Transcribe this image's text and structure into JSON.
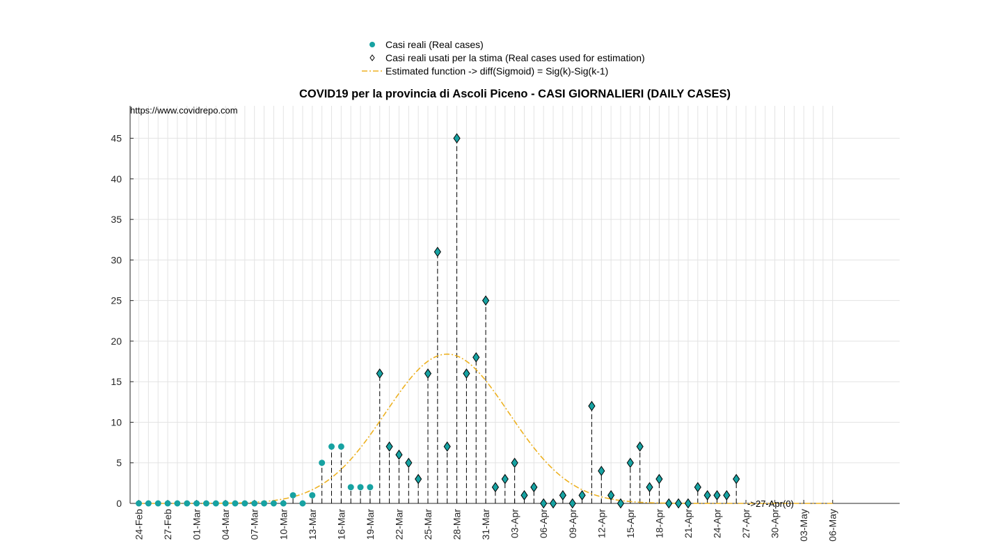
{
  "chart_data": {
    "type": "scatter",
    "title": "COVID19 per la provincia di Ascoli Piceno - CASI GIORNALIERI (DAILY CASES)",
    "xlabel": "",
    "ylabel": "",
    "source_text": "https://www.covidrepo.com",
    "forecast_annotation": "->27-Apr(0)",
    "ylim": [
      0,
      49
    ],
    "y_ticks": [
      0,
      5,
      10,
      15,
      20,
      25,
      30,
      35,
      40,
      45
    ],
    "x_tick_labels": [
      "24-Feb",
      "27-Feb",
      "01-Mar",
      "04-Mar",
      "07-Mar",
      "10-Mar",
      "13-Mar",
      "16-Mar",
      "19-Mar",
      "22-Mar",
      "25-Mar",
      "28-Mar",
      "31-Mar",
      "03-Apr",
      "06-Apr",
      "09-Apr",
      "12-Apr",
      "15-Apr",
      "18-Apr",
      "21-Apr",
      "24-Apr",
      "27-Apr",
      "30-Apr",
      "03-May",
      "06-May"
    ],
    "x_range": [
      "2020-02-24",
      "2020-05-06"
    ],
    "grid": true,
    "legend_position": "top-center",
    "legend": [
      {
        "label": "Casi reali (Real cases)",
        "marker": "circle",
        "color": "#17a2a2"
      },
      {
        "label": "Casi reali usati per la stima (Real cases used for estimation)",
        "marker": "diamond",
        "color": "#000000"
      },
      {
        "label": "Estimated function -> diff(Sigmoid) = Sig(k)-Sig(k-1)",
        "marker": "dashdot-line",
        "color": "#EDB120"
      }
    ],
    "series": [
      {
        "name": "Casi reali (Real cases)",
        "dates": [
          "2020-02-24",
          "2020-02-25",
          "2020-02-26",
          "2020-02-27",
          "2020-02-28",
          "2020-02-29",
          "2020-03-01",
          "2020-03-02",
          "2020-03-03",
          "2020-03-04",
          "2020-03-05",
          "2020-03-06",
          "2020-03-07",
          "2020-03-08",
          "2020-03-09",
          "2020-03-10",
          "2020-03-11",
          "2020-03-12",
          "2020-03-13",
          "2020-03-14",
          "2020-03-15",
          "2020-03-16",
          "2020-03-17",
          "2020-03-18",
          "2020-03-19"
        ],
        "values": [
          0,
          0,
          0,
          0,
          0,
          0,
          0,
          0,
          0,
          0,
          0,
          0,
          0,
          0,
          0,
          0,
          1,
          0,
          1,
          5,
          7,
          7,
          2,
          2,
          2
        ]
      },
      {
        "name": "Casi reali usati per la stima (Real cases used for estimation)",
        "dates": [
          "2020-03-20",
          "2020-03-21",
          "2020-03-22",
          "2020-03-23",
          "2020-03-24",
          "2020-03-25",
          "2020-03-26",
          "2020-03-27",
          "2020-03-28",
          "2020-03-29",
          "2020-03-30",
          "2020-03-31",
          "2020-04-01",
          "2020-04-02",
          "2020-04-03",
          "2020-04-04",
          "2020-04-05",
          "2020-04-06",
          "2020-04-07",
          "2020-04-08",
          "2020-04-09",
          "2020-04-10",
          "2020-04-11",
          "2020-04-12",
          "2020-04-13",
          "2020-04-14",
          "2020-04-15",
          "2020-04-16",
          "2020-04-17",
          "2020-04-18",
          "2020-04-19",
          "2020-04-20",
          "2020-04-21",
          "2020-04-22",
          "2020-04-23",
          "2020-04-24",
          "2020-04-25",
          "2020-04-26"
        ],
        "values": [
          16,
          7,
          6,
          5,
          3,
          16,
          31,
          7,
          45,
          16,
          18,
          25,
          2,
          3,
          5,
          1,
          2,
          0,
          0,
          1,
          0,
          1,
          12,
          4,
          1,
          0,
          5,
          7,
          2,
          3,
          0,
          0,
          0,
          2,
          1,
          1,
          1,
          3
        ]
      },
      {
        "name": "Estimated function -> diff(Sigmoid) = Sig(k)-Sig(k-1)",
        "function": "gaussian-like",
        "peak_date": "2020-03-27",
        "peak_value": 18.4,
        "spread_days": 6.4,
        "x_range": [
          "2020-02-24",
          "2020-05-06"
        ]
      }
    ]
  },
  "colors": {
    "real_cases": "#17a2a2",
    "marker_edge": "#000000",
    "estimate": "#EDB120",
    "annotation": "#0000ff",
    "grid": "#e3e3e3"
  }
}
